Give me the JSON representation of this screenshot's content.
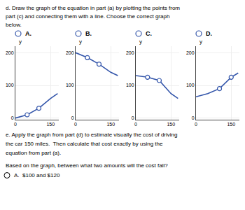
{
  "title": [
    "d. Draw the graph of the equation in part (a) by plotting the points from",
    "part (c) and connecting them with a line. Choose the correct graph",
    "below."
  ],
  "annotations": [
    "e. Apply the graph from part (d) to estimate visually the cost of driving",
    "the car 150 miles.  Then calculate that cost exactly by using the",
    "equation from part (a).",
    "Based on the graph, between what two amounts will the cost fall?",
    "A.  $100 and $120"
  ],
  "chart_data": [
    {
      "type": "line",
      "title": "A.",
      "ylabel": "y",
      "x": [
        0,
        50,
        100,
        150,
        180
      ],
      "series": [
        {
          "type": "line",
          "color": "#3355aa",
          "values": [
            0,
            10,
            30,
            60,
            75
          ]
        },
        {
          "type": "scatter",
          "marker": "open circle",
          "color": "#3355aa",
          "x": [
            50,
            100
          ],
          "values": [
            10,
            30
          ]
        }
      ],
      "xlim": [
        0,
        185
      ],
      "ylim": [
        -5,
        220
      ],
      "xticks": [
        0,
        150
      ],
      "yticks": [
        0,
        100,
        200
      ],
      "grid": true
    },
    {
      "type": "line",
      "title": "B.",
      "ylabel": "y",
      "x": [
        0,
        50,
        100,
        150,
        180
      ],
      "series": [
        {
          "type": "line",
          "color": "#3355aa",
          "values": [
            200,
            185,
            165,
            140,
            130
          ]
        },
        {
          "type": "scatter",
          "marker": "open circle",
          "color": "#3355aa",
          "x": [
            50,
            100
          ],
          "values": [
            185,
            165
          ]
        }
      ],
      "xlim": [
        0,
        185
      ],
      "ylim": [
        -5,
        220
      ],
      "xticks": [
        0,
        150
      ],
      "yticks": [
        0,
        100,
        200
      ],
      "grid": true
    },
    {
      "type": "line",
      "title": "C.",
      "ylabel": "y",
      "x": [
        0,
        50,
        100,
        150,
        180
      ],
      "series": [
        {
          "type": "line",
          "color": "#3355aa",
          "values": [
            130,
            125,
            115,
            75,
            60
          ]
        },
        {
          "type": "scatter",
          "marker": "open circle",
          "color": "#3355aa",
          "x": [
            50,
            100
          ],
          "values": [
            125,
            115
          ]
        }
      ],
      "xlim": [
        0,
        185
      ],
      "ylim": [
        -5,
        220
      ],
      "xticks": [
        0,
        150
      ],
      "yticks": [
        0,
        100,
        200
      ],
      "grid": true
    },
    {
      "type": "line",
      "title": "D.",
      "ylabel": "y",
      "x": [
        0,
        50,
        100,
        150,
        180
      ],
      "series": [
        {
          "type": "line",
          "color": "#3355aa",
          "values": [
            65,
            75,
            90,
            125,
            138
          ]
        },
        {
          "type": "scatter",
          "marker": "open circle",
          "color": "#3355aa",
          "x": [
            100,
            150
          ],
          "values": [
            90,
            125
          ]
        }
      ],
      "xlim": [
        0,
        185
      ],
      "ylim": [
        -5,
        220
      ],
      "xticks": [
        0,
        150
      ],
      "yticks": [
        0,
        100,
        200
      ],
      "grid": true
    }
  ]
}
